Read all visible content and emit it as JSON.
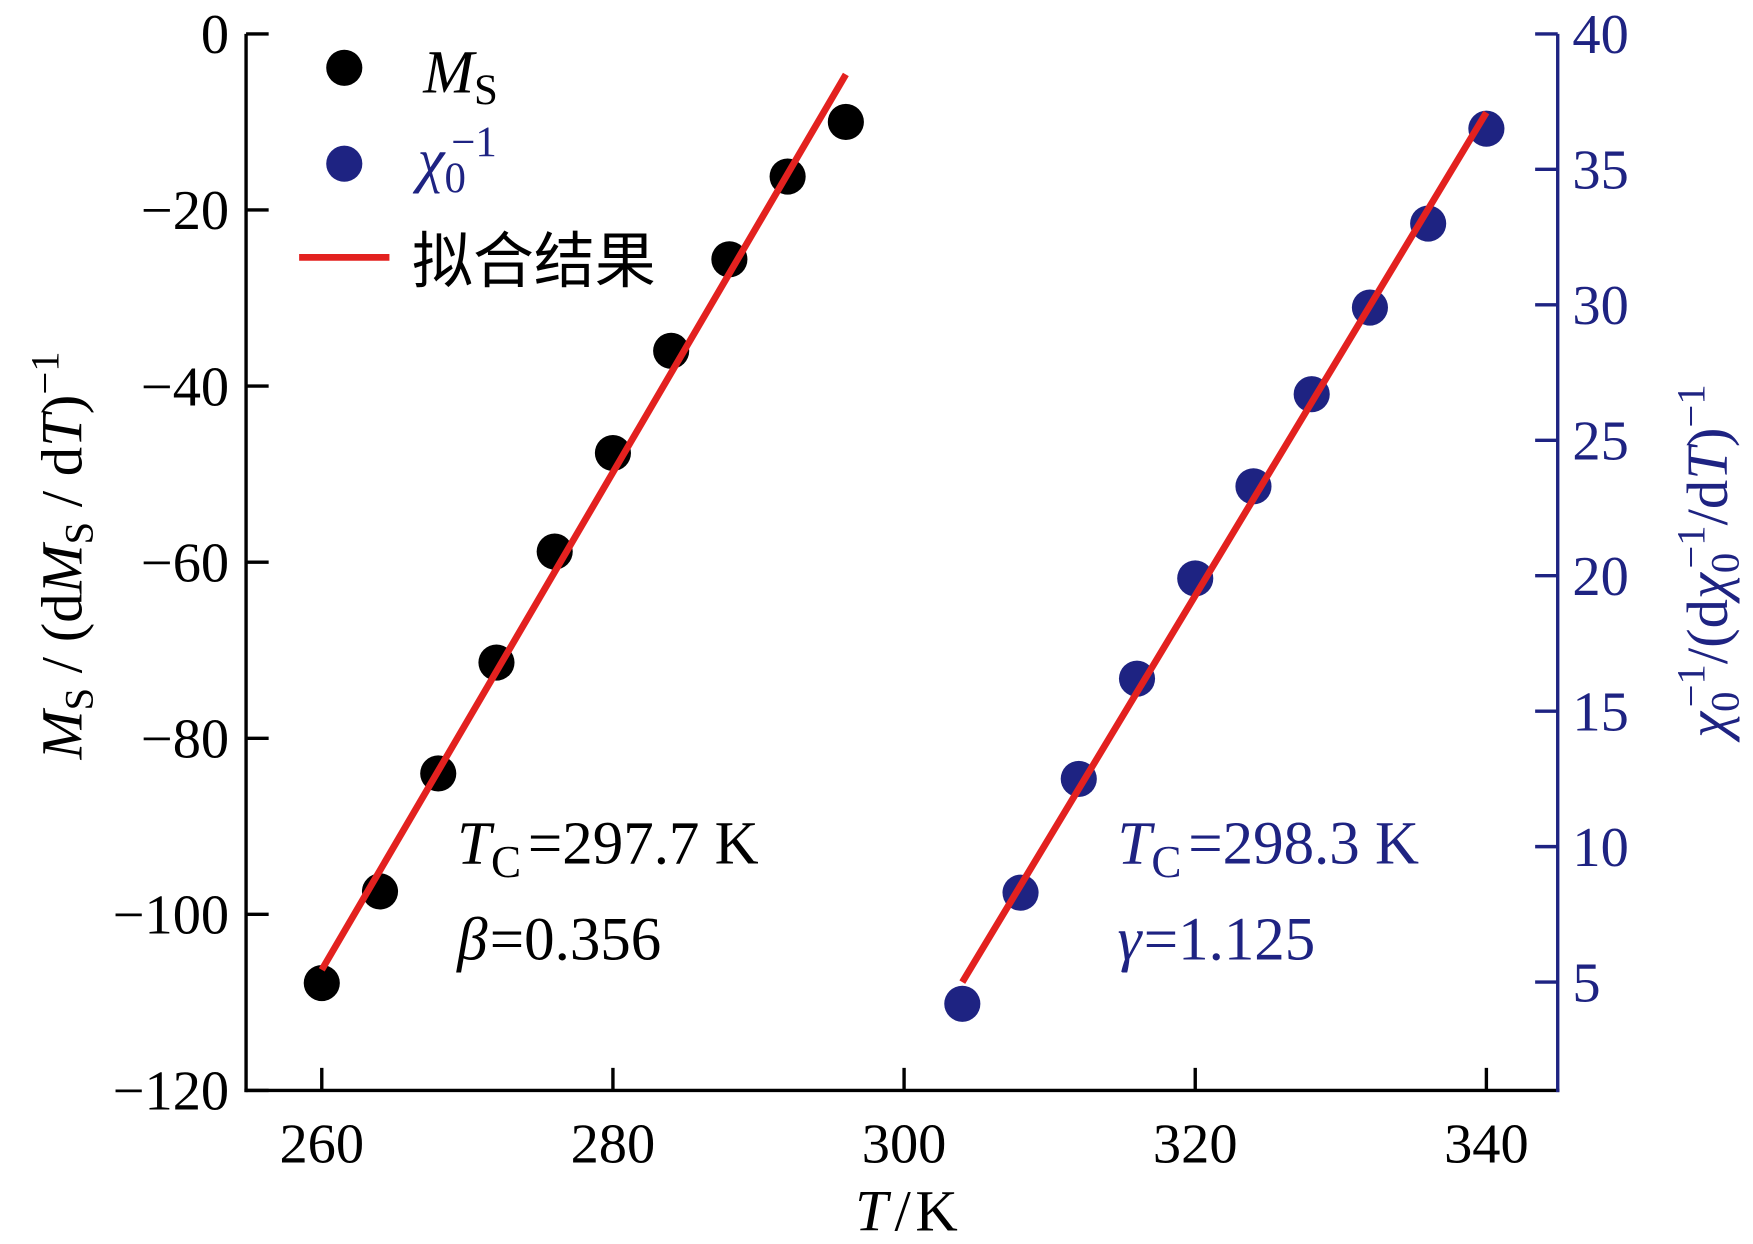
{
  "chart_data": {
    "type": "scatter",
    "grid": false,
    "legend_position": "top-left",
    "x": {
      "label": [
        "T",
        "/",
        "K"
      ],
      "lim": [
        254.8,
        344.9
      ],
      "ticks": [
        260,
        280,
        300,
        320,
        340
      ],
      "tick_labels": [
        "260",
        "280",
        "300",
        "320",
        "340"
      ],
      "color": "#000000"
    },
    "y_left": {
      "label": [
        "M",
        "S",
        " / (d",
        "M",
        "S",
        " / d",
        "T",
        ")",
        "−1"
      ],
      "lim": [
        -120,
        0
      ],
      "ticks": [
        0,
        -20,
        -40,
        -60,
        -80,
        -100,
        -120
      ],
      "tick_labels": [
        "0",
        "−20",
        "−40",
        "−60",
        "−80",
        "−100",
        "−120"
      ],
      "color": "#000000"
    },
    "y_right": {
      "label": [
        "χ",
        "0",
        "−1",
        "/(d",
        "χ",
        "0",
        "−1",
        "/d",
        "T",
        ")",
        "−1"
      ],
      "lim": [
        1,
        40
      ],
      "ticks": [
        5,
        10,
        15,
        20,
        25,
        30,
        35,
        40
      ],
      "tick_labels": [
        "5",
        "10",
        "15",
        "20",
        "25",
        "30",
        "35",
        "40"
      ],
      "color": "#1e2382"
    },
    "series": [
      {
        "label": [
          "M",
          "S"
        ],
        "secondary_y": false,
        "color": "#000000",
        "x": [
          260,
          264,
          268,
          272,
          276,
          280,
          284,
          288,
          292,
          296
        ],
        "y": [
          -107.8,
          -97.4,
          -84.0,
          -71.4,
          -58.8,
          -47.6,
          -36.0,
          -25.6,
          -16.2,
          -10.0
        ]
      },
      {
        "label": [
          "χ",
          "0",
          "−1"
        ],
        "secondary_y": true,
        "color": "#1e2382",
        "x": [
          304,
          308,
          312,
          316,
          320,
          324,
          328,
          332,
          336,
          340
        ],
        "y": [
          4.2,
          8.3,
          12.5,
          16.2,
          19.9,
          23.3,
          26.7,
          29.9,
          33.0,
          36.5
        ]
      }
    ],
    "fit": {
      "label": "拟合结果",
      "color": "#e3211f",
      "lines": [
        {
          "secondary_y": false,
          "x": [
            260,
            296
          ],
          "y": [
            -106.3,
            -4.6
          ]
        },
        {
          "secondary_y": true,
          "x": [
            304,
            340
          ],
          "y": [
            5.0,
            37.1
          ]
        }
      ]
    },
    "annotations": [
      {
        "color": "#000000",
        "lines": [
          [
            "T",
            "C",
            "=297.7 K"
          ],
          [
            "β",
            "=0.356"
          ]
        ]
      },
      {
        "color": "#1e2382",
        "lines": [
          [
            "T",
            "C",
            "=298.3 K"
          ],
          [
            "γ",
            "=1.125"
          ]
        ]
      }
    ]
  }
}
